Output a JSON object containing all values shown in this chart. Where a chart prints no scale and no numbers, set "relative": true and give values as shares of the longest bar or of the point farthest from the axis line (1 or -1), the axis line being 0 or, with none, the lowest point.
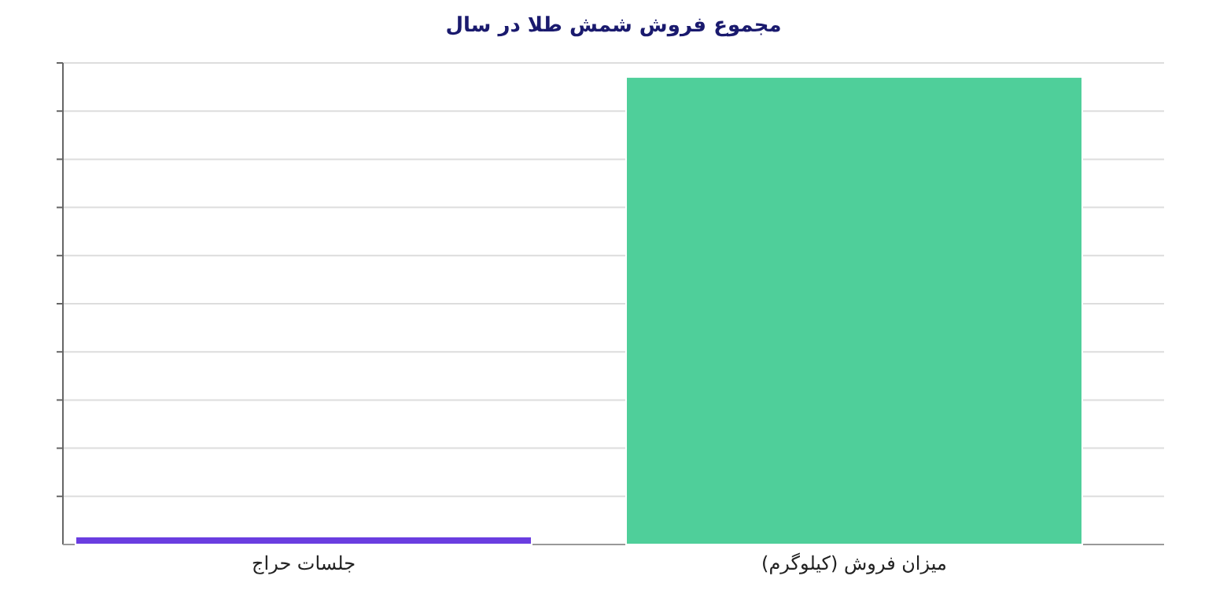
{
  "chart_data": {
    "type": "bar",
    "title": "مجموع فروش شمش طلا در سال",
    "categories": [
      "جلسات حراج",
      "(میزان فروش (کیلوگرم"
    ],
    "values": [
      0.017,
      1
    ],
    "colors": [
      "#6a3de0",
      "#4fcf9a"
    ],
    "relative": true,
    "grid": "y"
  }
}
